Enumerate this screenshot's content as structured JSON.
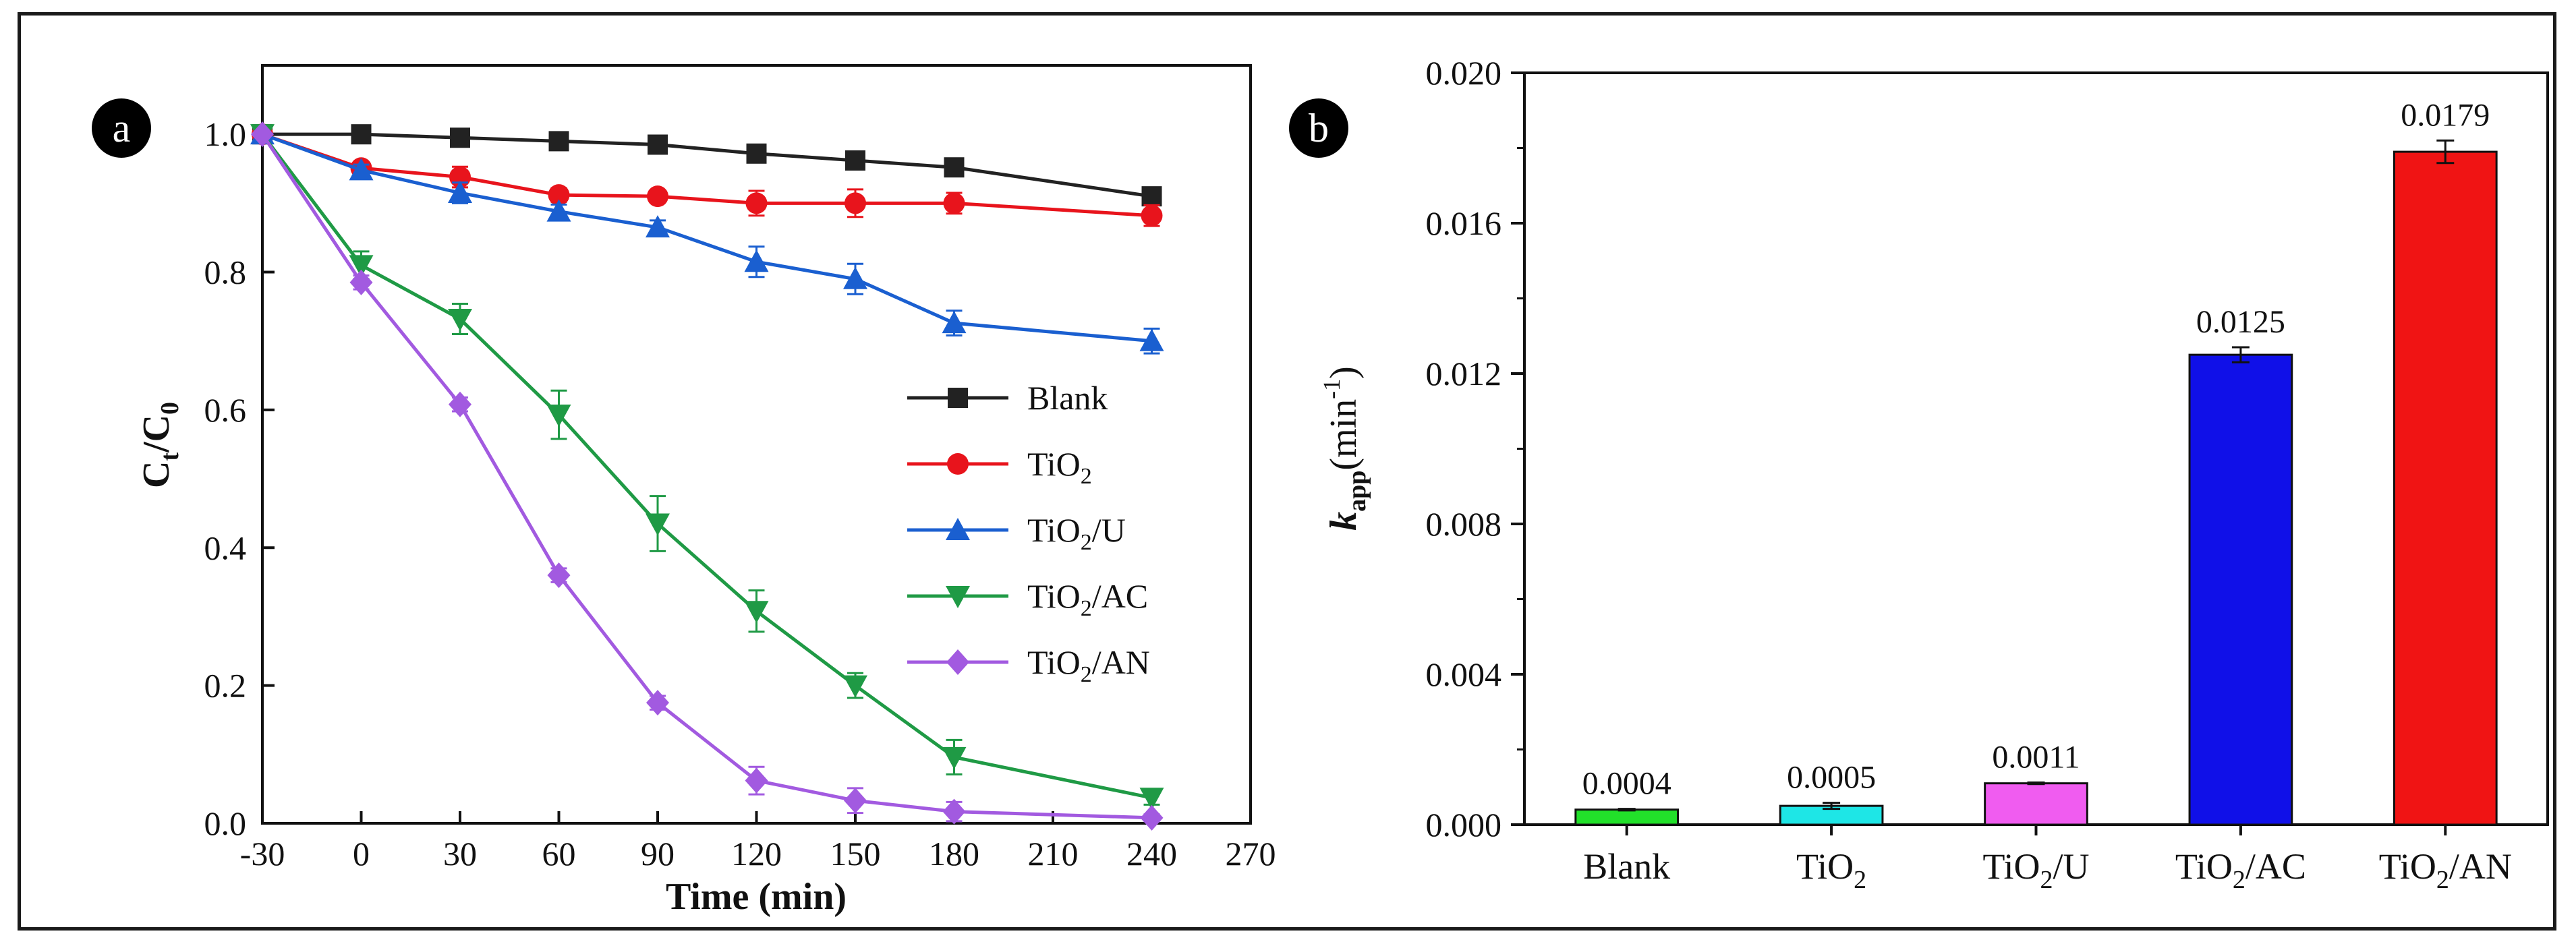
{
  "chart_data": [
    {
      "panel_label": "a",
      "type": "line",
      "xlabel": "Time (min)",
      "ylabel": {
        "base": "C",
        "sub1": "t",
        "mid": "/C",
        "sub2": "0"
      },
      "xlim": [
        -30,
        270
      ],
      "ylim": [
        0.0,
        1.1
      ],
      "x_ticks": [
        -30,
        0,
        30,
        60,
        90,
        120,
        150,
        180,
        210,
        240,
        270
      ],
      "x_tick_labels": [
        "-30",
        "0",
        "30",
        "60",
        "90",
        "120",
        "150",
        "180",
        "210",
        "240",
        "270"
      ],
      "y_ticks": [
        0.0,
        0.2,
        0.4,
        0.6,
        0.8,
        1.0
      ],
      "y_tick_labels": [
        "0.0",
        "0.2",
        "0.4",
        "0.6",
        "0.8",
        "1.0"
      ],
      "x": [
        -30,
        0,
        30,
        60,
        90,
        120,
        150,
        180,
        240
      ],
      "legend_position": "center-right",
      "series": [
        {
          "name": "Blank",
          "label_main": "Blank",
          "label_sub": "",
          "label_tail": "",
          "color": "#222222",
          "marker": "square",
          "values": [
            1.0,
            1.0,
            0.995,
            0.99,
            0.985,
            0.972,
            0.962,
            0.952,
            0.91
          ],
          "errors": [
            0,
            0,
            0.006,
            0.005,
            0.006,
            0.008,
            0.008,
            0.008,
            0.012
          ]
        },
        {
          "name": "TiO2",
          "label_main": "TiO",
          "label_sub": "2",
          "label_tail": "",
          "color": "#e8141c",
          "marker": "circle",
          "values": [
            1.0,
            0.951,
            0.938,
            0.912,
            0.91,
            0.9,
            0.9,
            0.9,
            0.882
          ],
          "errors": [
            0,
            0.008,
            0.015,
            0.01,
            0.008,
            0.018,
            0.02,
            0.015,
            0.015
          ]
        },
        {
          "name": "TiO2/U",
          "label_main": "TiO",
          "label_sub": "2",
          "label_tail": "/U",
          "color": "#1a5fd0",
          "marker": "triangle-up",
          "values": [
            1.0,
            0.948,
            0.915,
            0.888,
            0.865,
            0.815,
            0.79,
            0.726,
            0.7
          ],
          "errors": [
            0,
            0.008,
            0.015,
            0.01,
            0.01,
            0.022,
            0.022,
            0.018,
            0.018
          ]
        },
        {
          "name": "TiO2/AC",
          "label_main": "TiO",
          "label_sub": "2",
          "label_tail": "/AC",
          "color": "#1f9a45",
          "marker": "triangle-down",
          "values": [
            1.0,
            0.81,
            0.732,
            0.593,
            0.435,
            0.308,
            0.2,
            0.096,
            0.037
          ],
          "errors": [
            0,
            0.02,
            0.022,
            0.035,
            0.04,
            0.03,
            0.018,
            0.025,
            0.01
          ]
        },
        {
          "name": "TiO2/AN",
          "label_main": "TiO",
          "label_sub": "2",
          "label_tail": "/AN",
          "color": "#a25ae0",
          "marker": "diamond",
          "values": [
            1.0,
            0.785,
            0.608,
            0.36,
            0.175,
            0.062,
            0.033,
            0.017,
            0.008
          ],
          "errors": [
            0,
            0.01,
            0.01,
            0.01,
            0.01,
            0.02,
            0.018,
            0.014,
            0.005
          ]
        }
      ]
    },
    {
      "panel_label": "b",
      "type": "bar",
      "ylabel": {
        "base": "k",
        "sub": "app",
        "unit": "(min",
        "sup": "-1",
        "close": ")"
      },
      "ylim": [
        0.0,
        0.02
      ],
      "y_ticks": [
        0.0,
        0.004,
        0.008,
        0.012,
        0.016,
        0.02
      ],
      "y_tick_labels": [
        "0.000",
        "0.004",
        "0.008",
        "0.012",
        "0.016",
        "0.020"
      ],
      "categories": [
        "Blank",
        "TiO2",
        "TiO2/U",
        "TiO2/AC",
        "TiO2/AN"
      ],
      "category_labels": [
        {
          "main": "Blank",
          "sub": "",
          "tail": ""
        },
        {
          "main": "TiO",
          "sub": "2",
          "tail": ""
        },
        {
          "main": "TiO",
          "sub": "2",
          "tail": "/U"
        },
        {
          "main": "TiO",
          "sub": "2",
          "tail": "/AC"
        },
        {
          "main": "TiO",
          "sub": "2",
          "tail": "/AN"
        }
      ],
      "values": [
        0.0004,
        0.0005,
        0.0011,
        0.0125,
        0.0179
      ],
      "value_labels": [
        "0.0004",
        "0.0005",
        "0.0011",
        "0.0125",
        "0.0179"
      ],
      "errors": [
        2e-05,
        8e-05,
        2e-05,
        0.0002,
        0.0003
      ],
      "colors": [
        "#22e02a",
        "#1ee6e6",
        "#f05cf0",
        "#1010e8",
        "#f01414"
      ]
    }
  ]
}
